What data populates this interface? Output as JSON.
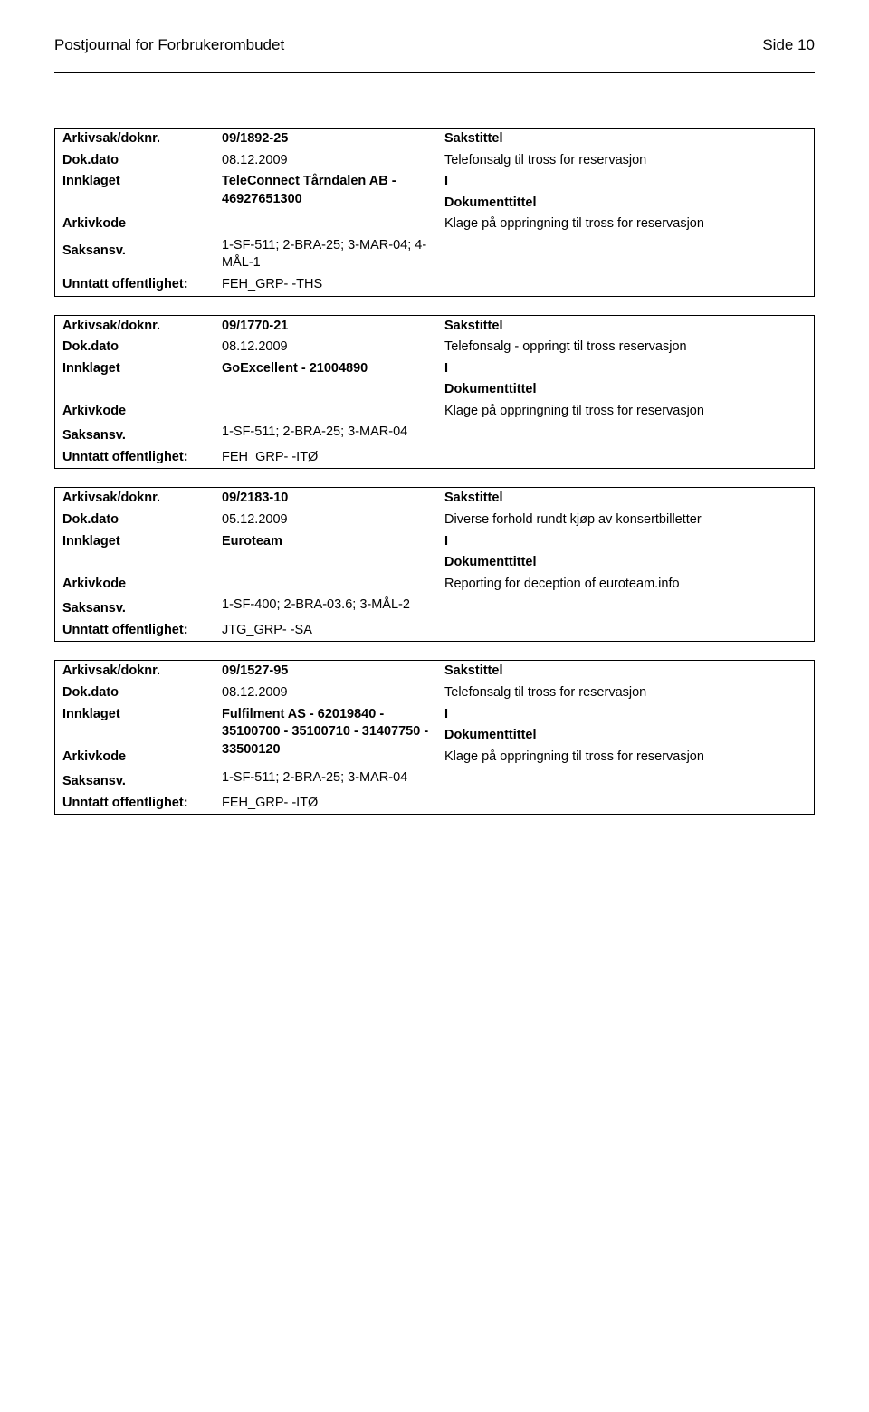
{
  "header": {
    "journal_title": "Postjournal for Forbrukerombudet",
    "page_number_label": "Side 10"
  },
  "labels": {
    "arkivsak": "Arkivsak/doknr.",
    "sakstittel": "Sakstittel",
    "dokdato": "Dok.dato",
    "innklaget": "Innklaget",
    "dokumenttittel": "Dokumenttittel",
    "arkivkode": "Arkivkode",
    "saksansv": "Saksansv.",
    "unntatt": "Unntatt offentlighet:"
  },
  "records": [
    {
      "arkivsak": "09/1892-25",
      "dokdato": "08.12.2009",
      "sakstittel_text": "Telefonsalg til tross for reservasjon",
      "innklaget": "TeleConnect Tårndalen AB - 46927651300",
      "doc_indicator": "I",
      "arkivkode": "1-SF-511; 2-BRA-25; 3-MAR-04; 4-MÅL-1",
      "dokumenttittel_text": "Klage på oppringning til tross for reservasjon",
      "saksansv": "FEH_GRP- -THS"
    },
    {
      "arkivsak": "09/1770-21",
      "dokdato": "08.12.2009",
      "sakstittel_text": "Telefonsalg - oppringt til tross reservasjon",
      "innklaget": "GoExcellent - 21004890",
      "doc_indicator": "I",
      "arkivkode": "1-SF-511; 2-BRA-25; 3-MAR-04",
      "dokumenttittel_text": "Klage på oppringning til tross for reservasjon",
      "saksansv": "FEH_GRP- -ITØ"
    },
    {
      "arkivsak": "09/2183-10",
      "dokdato": "05.12.2009",
      "sakstittel_text": "Diverse forhold rundt kjøp av konsertbilletter",
      "innklaget": "Euroteam",
      "doc_indicator": "I",
      "arkivkode": "1-SF-400; 2-BRA-03.6; 3-MÅL-2",
      "dokumenttittel_text": "Reporting for deception of euroteam.info",
      "saksansv": "JTG_GRP- -SA"
    },
    {
      "arkivsak": "09/1527-95",
      "dokdato": "08.12.2009",
      "sakstittel_text": "Telefonsalg til tross for reservasjon",
      "innklaget": "Fulfilment AS - 62019840 - 35100700 - 35100710 - 31407750 - 33500120",
      "doc_indicator": "I",
      "arkivkode": "1-SF-511; 2-BRA-25; 3-MAR-04",
      "dokumenttittel_text": "Klage på oppringning til tross for reservasjon",
      "saksansv": "FEH_GRP- -ITØ"
    }
  ]
}
